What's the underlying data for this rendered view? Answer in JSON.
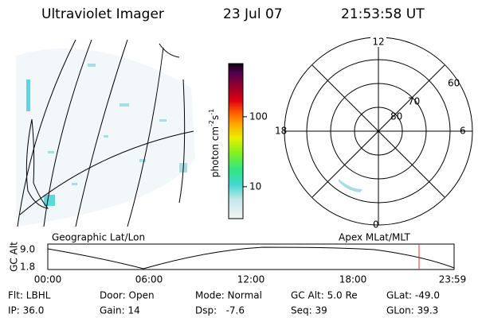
{
  "header": {
    "title": "Ultraviolet Imager",
    "date": "23 Jul 07",
    "time": "21:53:58 UT"
  },
  "colorbar": {
    "label_base": "photon cm",
    "label_exp1": "-2",
    "label_mid": "s",
    "label_exp2": "-1",
    "scale": "log",
    "lim": [
      3.5,
      575
    ],
    "ticks": [
      10,
      100
    ]
  },
  "polar": {
    "mlt_labels": [
      "12",
      "18",
      "6",
      "0"
    ],
    "lat_labels": [
      "60",
      "70",
      "80"
    ]
  },
  "panel_labels": {
    "left": "Geographic Lat/Lon",
    "right": "Apex MLat/MLT"
  },
  "altitude": {
    "axis_label": "GC Alt",
    "y_labels": [
      "9.0",
      "1.8"
    ],
    "x_labels": [
      "00:00",
      "06:00",
      "12:00",
      "18:00",
      "23:59"
    ]
  },
  "footer": {
    "rows": [
      [
        "Flt: LBHL",
        "Door: Open",
        "Mode: Normal",
        "GC Alt: 5.0 Re",
        "GLat: -49.0"
      ],
      [
        "IP: 36.0",
        "Gain: 14",
        "Dsp:   -7.6",
        "Seq: 39",
        "GLon: 39.3"
      ]
    ]
  }
}
